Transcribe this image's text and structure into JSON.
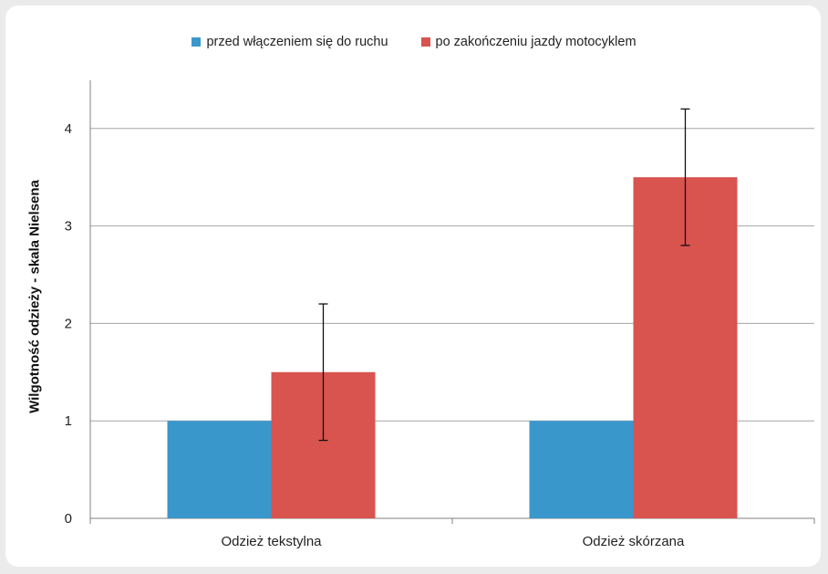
{
  "chart_data": {
    "type": "bar",
    "categories": [
      "Odzież tekstylna",
      "Odzież skórzana"
    ],
    "series": [
      {
        "name": "przed włączeniem się do ruchu",
        "values": [
          1,
          1
        ],
        "color": "#3a97cb"
      },
      {
        "name": "po zakończeniu jazdy motocyklem",
        "values": [
          1.5,
          3.5
        ],
        "color": "#d9534f",
        "error_low": [
          0.8,
          2.8
        ],
        "error_high": [
          2.2,
          4.2
        ]
      }
    ],
    "ylabel": "Wilgotność odzieży - skala Nielsena",
    "xlabel": "",
    "ylim": [
      0,
      4.5
    ],
    "yticks": [
      "0",
      "1",
      "2",
      "3",
      "4"
    ],
    "grid": true,
    "legend_position": "top-center"
  }
}
